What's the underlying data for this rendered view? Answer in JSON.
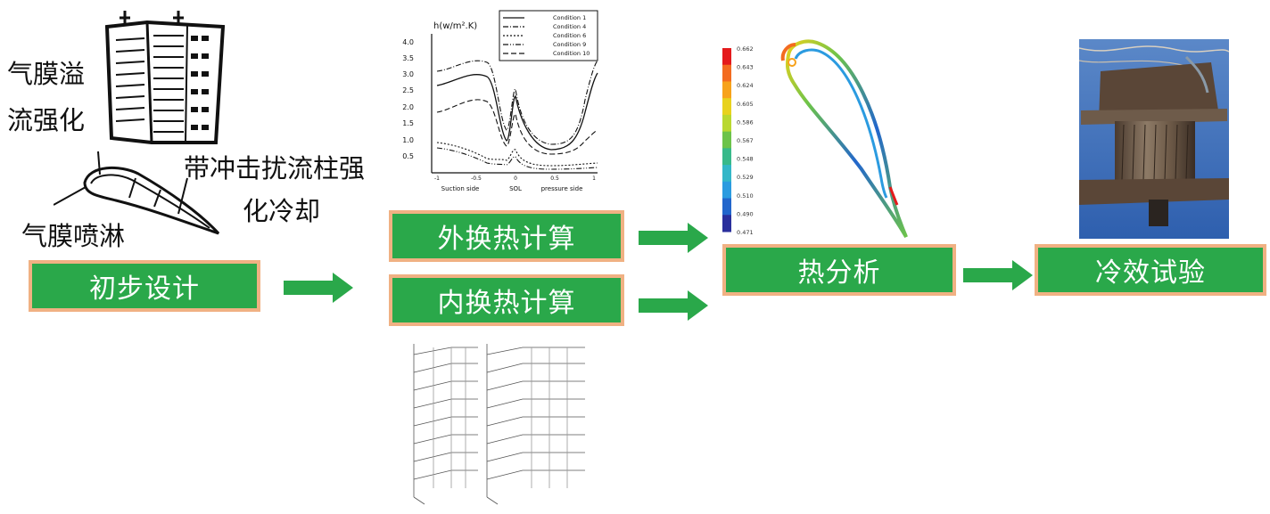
{
  "stages": {
    "initial_design": "初步设计",
    "external_htc": "外换热计算",
    "internal_htc": "内换热计算",
    "thermal_analysis": "热分析",
    "cooling_test": "冷效试验"
  },
  "annotations": {
    "film_overflow": [
      "气膜溢",
      "流强化"
    ],
    "film_shower": "气膜喷淋",
    "impingement": [
      "带冲击扰流柱强",
      "化冷却"
    ]
  },
  "htc_chart": {
    "ylabel": "h(w/m².K)",
    "legend": [
      "Condition 1",
      "Condition 4",
      "Condition 6",
      "Condition 9",
      "Condition 10"
    ],
    "yticks": [
      "4.0",
      "3.5",
      "3.0",
      "2.5",
      "2.0",
      "1.5",
      "1.0",
      "0.5"
    ],
    "xticks": [
      "-1",
      "-0.5",
      "0",
      "0.5",
      "1"
    ],
    "xlabels": [
      "Suction side",
      "SOL",
      "pressure side"
    ]
  },
  "colorbar": {
    "values": [
      "0.662",
      "0.643",
      "0.624",
      "0.605",
      "0.586",
      "0.567",
      "0.548",
      "0.529",
      "0.510",
      "0.490",
      "0.471"
    ],
    "colors": [
      "#e41a1c",
      "#f36b20",
      "#f7a21b",
      "#e8d21d",
      "#b9d830",
      "#6cc34a",
      "#38b98a",
      "#33b7c8",
      "#2b9be0",
      "#2266cc",
      "#2a2f9c"
    ]
  },
  "colors": {
    "box_fill": "#2aa84a",
    "box_border": "#f0b183",
    "arrow": "#2aa84a"
  }
}
